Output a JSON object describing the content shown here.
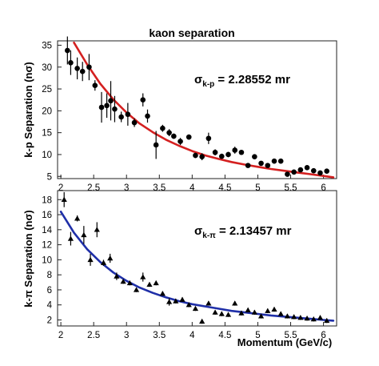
{
  "chart_data": [
    {
      "type": "scatter",
      "title": "kaon separation",
      "ylabel": "k-p Separation (nσ)",
      "xlim": [
        1.95,
        6.2
      ],
      "ylim": [
        4.5,
        36
      ],
      "xticks": [
        "2",
        "2.5",
        "3",
        "3.5",
        "4",
        "4.5",
        "5",
        "5.5",
        "6"
      ],
      "yticks": [
        "5",
        "10",
        "15",
        "20",
        "25",
        "30",
        "35"
      ],
      "annotation": {
        "sigma": "σ",
        "sub": "k-p",
        "value": " = 2.28552 mr"
      },
      "marker": "circle",
      "fit_color": "#d42020",
      "fit_curve": {
        "x": [
          2.2,
          2.4,
          2.6,
          2.8,
          3.0,
          3.2,
          3.4,
          3.6,
          3.8,
          4.0,
          4.2,
          4.4,
          4.6,
          4.8,
          5.0,
          5.2,
          5.4,
          5.6,
          5.8,
          6.0,
          6.15
        ],
        "y": [
          35.6,
          30.6,
          26.2,
          22.6,
          19.6,
          17.1,
          15.1,
          13.4,
          12.0,
          10.8,
          9.8,
          9.0,
          8.3,
          7.7,
          7.2,
          6.7,
          6.3,
          5.9,
          5.5,
          5.1,
          4.8
        ]
      },
      "points": {
        "x": [
          2.1,
          2.15,
          2.25,
          2.33,
          2.43,
          2.52,
          2.62,
          2.7,
          2.76,
          2.82,
          2.92,
          3.02,
          3.12,
          3.25,
          3.32,
          3.45,
          3.55,
          3.65,
          3.72,
          3.82,
          3.95,
          4.05,
          4.15,
          4.25,
          4.35,
          4.45,
          4.55,
          4.65,
          4.75,
          4.85,
          4.95,
          5.05,
          5.15,
          5.25,
          5.35,
          5.45,
          5.55,
          5.65,
          5.75,
          5.85,
          5.95,
          6.05
        ],
        "y": [
          33.8,
          31.0,
          29.7,
          29.0,
          30.0,
          25.8,
          20.8,
          21.2,
          22.3,
          20.4,
          18.6,
          19.2,
          17.3,
          22.5,
          18.8,
          12.2,
          16.0,
          15.0,
          14.2,
          13.0,
          14.0,
          9.8,
          9.5,
          13.7,
          10.5,
          9.6,
          10.0,
          11.0,
          10.5,
          7.5,
          9.5,
          8.0,
          7.5,
          8.5,
          8.5,
          5.5,
          6.0,
          6.5,
          7.0,
          6.3,
          5.8,
          6.2
        ],
        "err": [
          3.2,
          2.8,
          2.5,
          2.2,
          3.0,
          1.2,
          3.5,
          2.8,
          4.5,
          3.0,
          1.2,
          2.6,
          1.0,
          1.5,
          1.5,
          3.2,
          0.8,
          0.8,
          0.6,
          0.8,
          0.6,
          0.6,
          0.8,
          1.3,
          0.7,
          0.6,
          0.6,
          0.8,
          0.5,
          0.5,
          0.5,
          0.5,
          0.5,
          0.5,
          0.5,
          0.5,
          0.5,
          0.5,
          0.5,
          0.5,
          0.5,
          0.5
        ]
      }
    },
    {
      "type": "scatter",
      "title": "",
      "xlabel": "Momentum (GeV/c)",
      "ylabel": "k-π Separation (nσ)",
      "xlim": [
        1.95,
        6.2
      ],
      "ylim": [
        1.2,
        19.2
      ],
      "xticks": [
        "2",
        "2.5",
        "3",
        "3.5",
        "4",
        "4.5",
        "5",
        "5.5",
        "6"
      ],
      "yticks": [
        "2",
        "4",
        "6",
        "8",
        "10",
        "12",
        "14",
        "16",
        "18"
      ],
      "annotation": {
        "sigma": "σ",
        "sub": "k-π",
        "value": " = 2.13457 mr"
      },
      "marker": "triangle",
      "fit_color": "#1f2fa8",
      "fit_curve": {
        "x": [
          2.0,
          2.2,
          2.4,
          2.6,
          2.8,
          3.0,
          3.2,
          3.4,
          3.6,
          3.8,
          4.0,
          4.2,
          4.4,
          4.6,
          4.8,
          5.0,
          5.2,
          5.4,
          5.6,
          5.8,
          6.0,
          6.15
        ],
        "y": [
          16.4,
          13.6,
          11.4,
          9.7,
          8.3,
          7.2,
          6.3,
          5.6,
          5.0,
          4.5,
          4.1,
          3.8,
          3.5,
          3.2,
          3.0,
          2.8,
          2.6,
          2.45,
          2.3,
          2.15,
          2.0,
          1.9
        ]
      },
      "points": {
        "x": [
          2.05,
          2.15,
          2.25,
          2.35,
          2.45,
          2.55,
          2.65,
          2.75,
          2.85,
          2.95,
          3.05,
          3.15,
          3.25,
          3.35,
          3.45,
          3.55,
          3.65,
          3.75,
          3.85,
          3.95,
          4.05,
          4.15,
          4.25,
          4.35,
          4.45,
          4.55,
          4.65,
          4.75,
          4.85,
          4.95,
          5.05,
          5.15,
          5.25,
          5.35,
          5.45,
          5.55,
          5.65,
          5.75,
          5.85,
          5.95,
          6.05
        ],
        "y": [
          18.0,
          12.8,
          15.5,
          13.3,
          10.0,
          14.0,
          9.6,
          10.2,
          7.8,
          7.1,
          6.9,
          6.0,
          7.7,
          6.7,
          6.9,
          5.5,
          4.4,
          4.5,
          4.7,
          4.0,
          3.5,
          1.8,
          4.2,
          3.0,
          2.8,
          2.7,
          4.2,
          2.9,
          3.3,
          3.0,
          2.5,
          3.2,
          3.4,
          2.8,
          2.5,
          2.4,
          2.3,
          2.2,
          2.1,
          2.3,
          1.9
        ],
        "err": [
          1.0,
          0.9,
          0.4,
          1.2,
          0.8,
          1.0,
          0.4,
          0.6,
          0.5,
          0.3,
          0.3,
          0.3,
          0.6,
          0.3,
          0.3,
          0.3,
          0.5,
          0.3,
          0.3,
          0.3,
          0.3,
          0.3,
          0.3,
          0.3,
          0.3,
          0.3,
          0.3,
          0.3,
          0.3,
          0.3,
          0.3,
          0.3,
          0.3,
          0.3,
          0.3,
          0.3,
          0.3,
          0.3,
          0.3,
          0.3,
          0.3
        ]
      }
    }
  ]
}
